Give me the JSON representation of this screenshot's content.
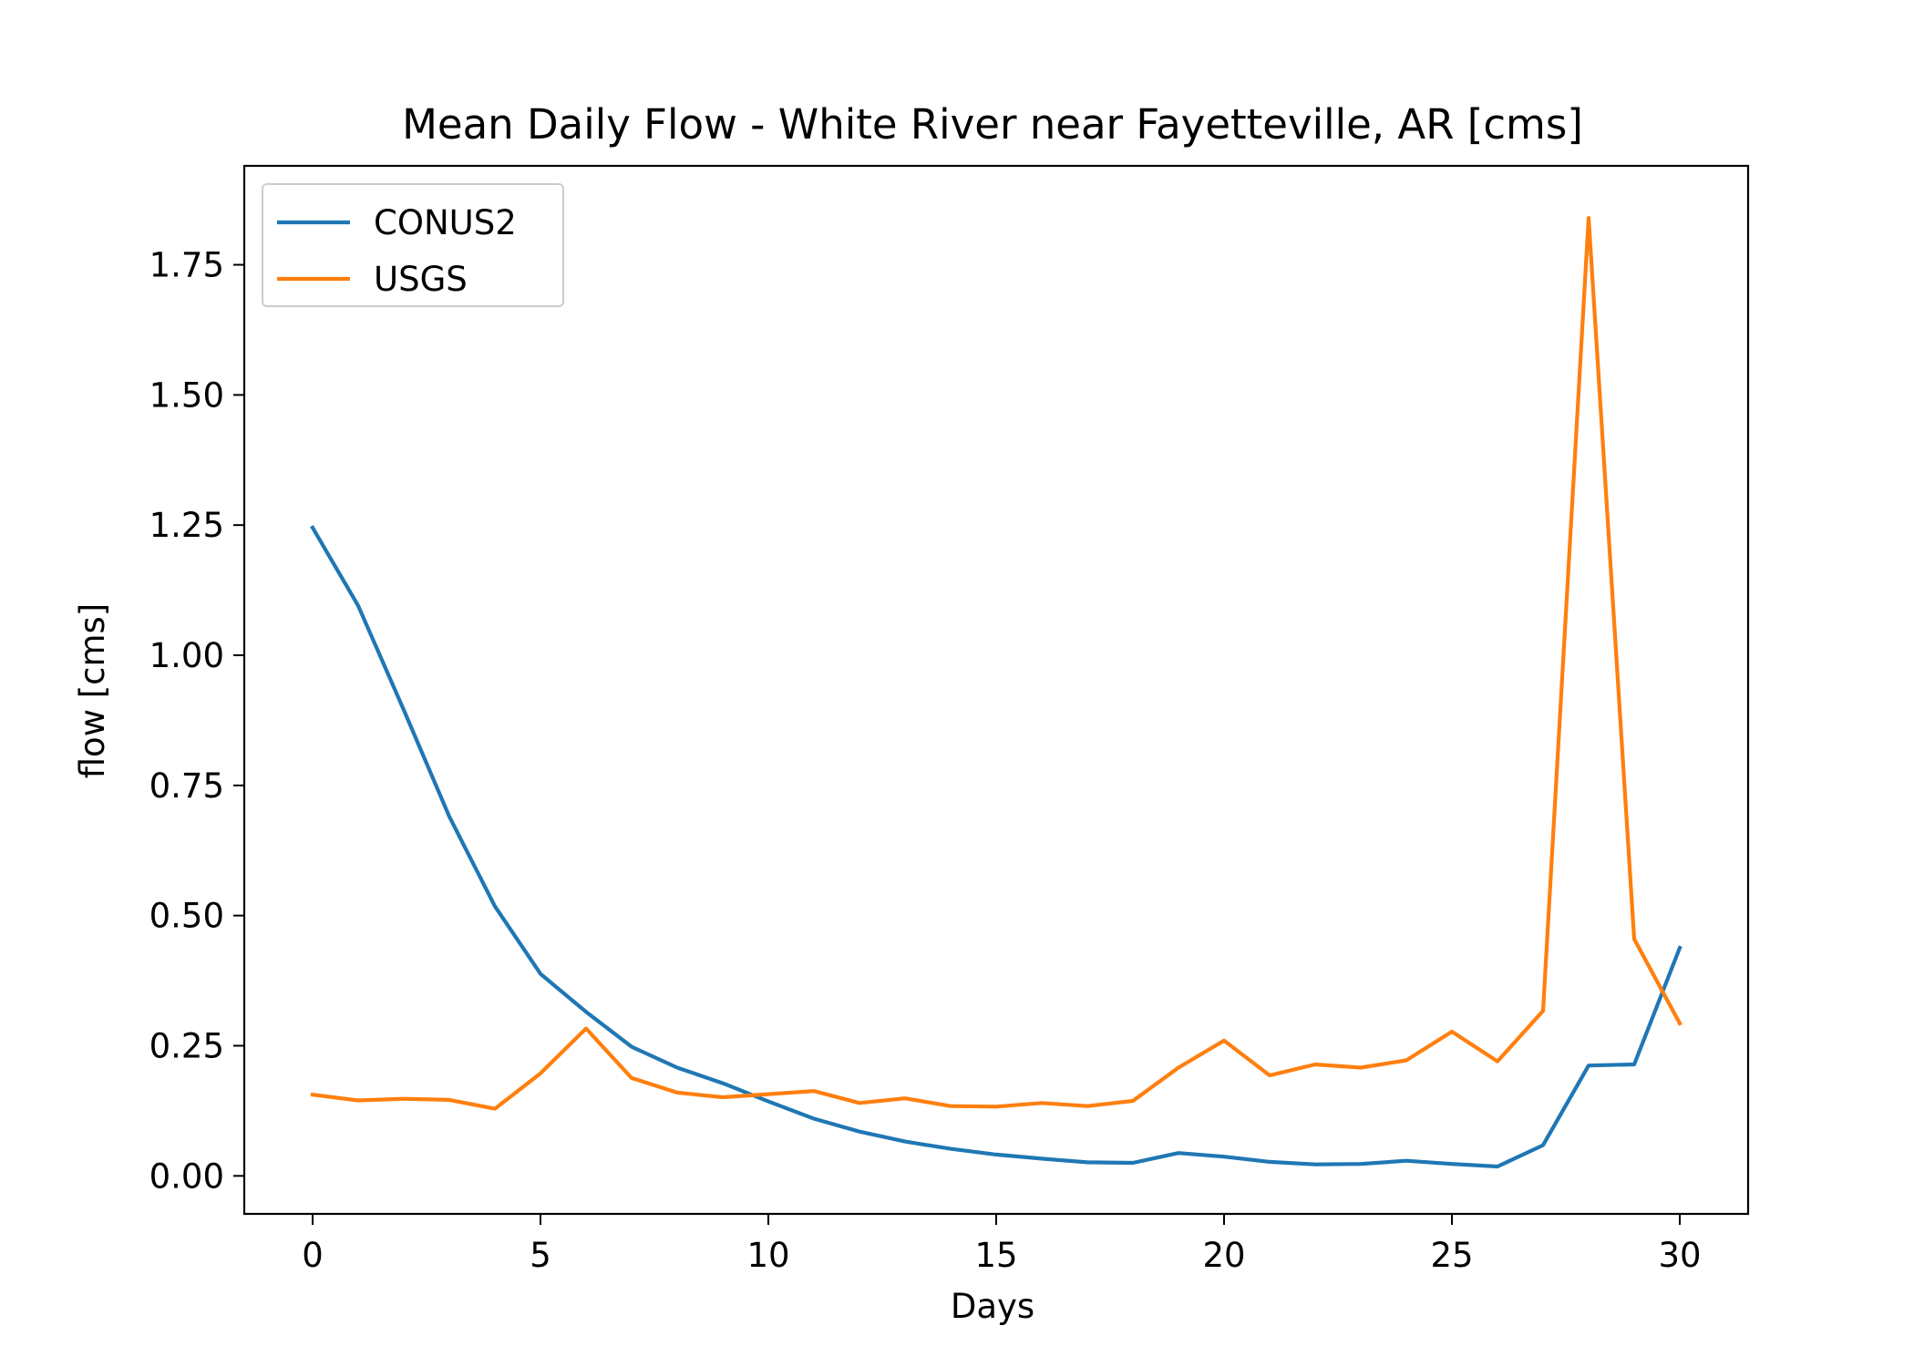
{
  "chart_data": {
    "type": "line",
    "title": "Mean Daily Flow - White River near Fayetteville, AR [cms]",
    "xlabel": "Days",
    "ylabel": "flow [cms]",
    "xlim": [
      -1.5,
      31.5
    ],
    "ylim": [
      -0.073,
      1.94
    ],
    "xticks": [
      0,
      5,
      10,
      15,
      20,
      25,
      30
    ],
    "xtick_labels": [
      "0",
      "5",
      "10",
      "15",
      "20",
      "25",
      "30"
    ],
    "yticks": [
      0.0,
      0.25,
      0.5,
      0.75,
      1.0,
      1.25,
      1.5,
      1.75
    ],
    "ytick_labels": [
      "0.00",
      "0.25",
      "0.50",
      "0.75",
      "1.00",
      "1.25",
      "1.50",
      "1.75"
    ],
    "grid": false,
    "legend": "upper-left",
    "x": [
      0,
      1,
      2,
      3,
      4,
      5,
      6,
      7,
      8,
      9,
      10,
      11,
      12,
      13,
      14,
      15,
      16,
      17,
      18,
      19,
      20,
      21,
      22,
      23,
      24,
      25,
      26,
      27,
      28,
      29,
      30
    ],
    "series": [
      {
        "name": "CONUS2",
        "color": "#1f77b4",
        "values": [
          1.245,
          1.095,
          0.895,
          0.69,
          0.518,
          0.388,
          0.315,
          0.248,
          0.208,
          0.178,
          0.143,
          0.11,
          0.085,
          0.066,
          0.052,
          0.041,
          0.033,
          0.026,
          0.025,
          0.044,
          0.037,
          0.027,
          0.022,
          0.023,
          0.029,
          0.023,
          0.018,
          0.059,
          0.212,
          0.214,
          0.438
        ]
      },
      {
        "name": "USGS",
        "color": "#ff7f0e",
        "values": [
          0.156,
          0.145,
          0.148,
          0.146,
          0.129,
          0.197,
          0.283,
          0.188,
          0.16,
          0.151,
          0.157,
          0.163,
          0.14,
          0.149,
          0.134,
          0.133,
          0.14,
          0.134,
          0.144,
          0.208,
          0.26,
          0.193,
          0.214,
          0.208,
          0.222,
          0.277,
          0.22,
          0.317,
          1.84,
          0.455,
          0.293
        ]
      }
    ]
  }
}
